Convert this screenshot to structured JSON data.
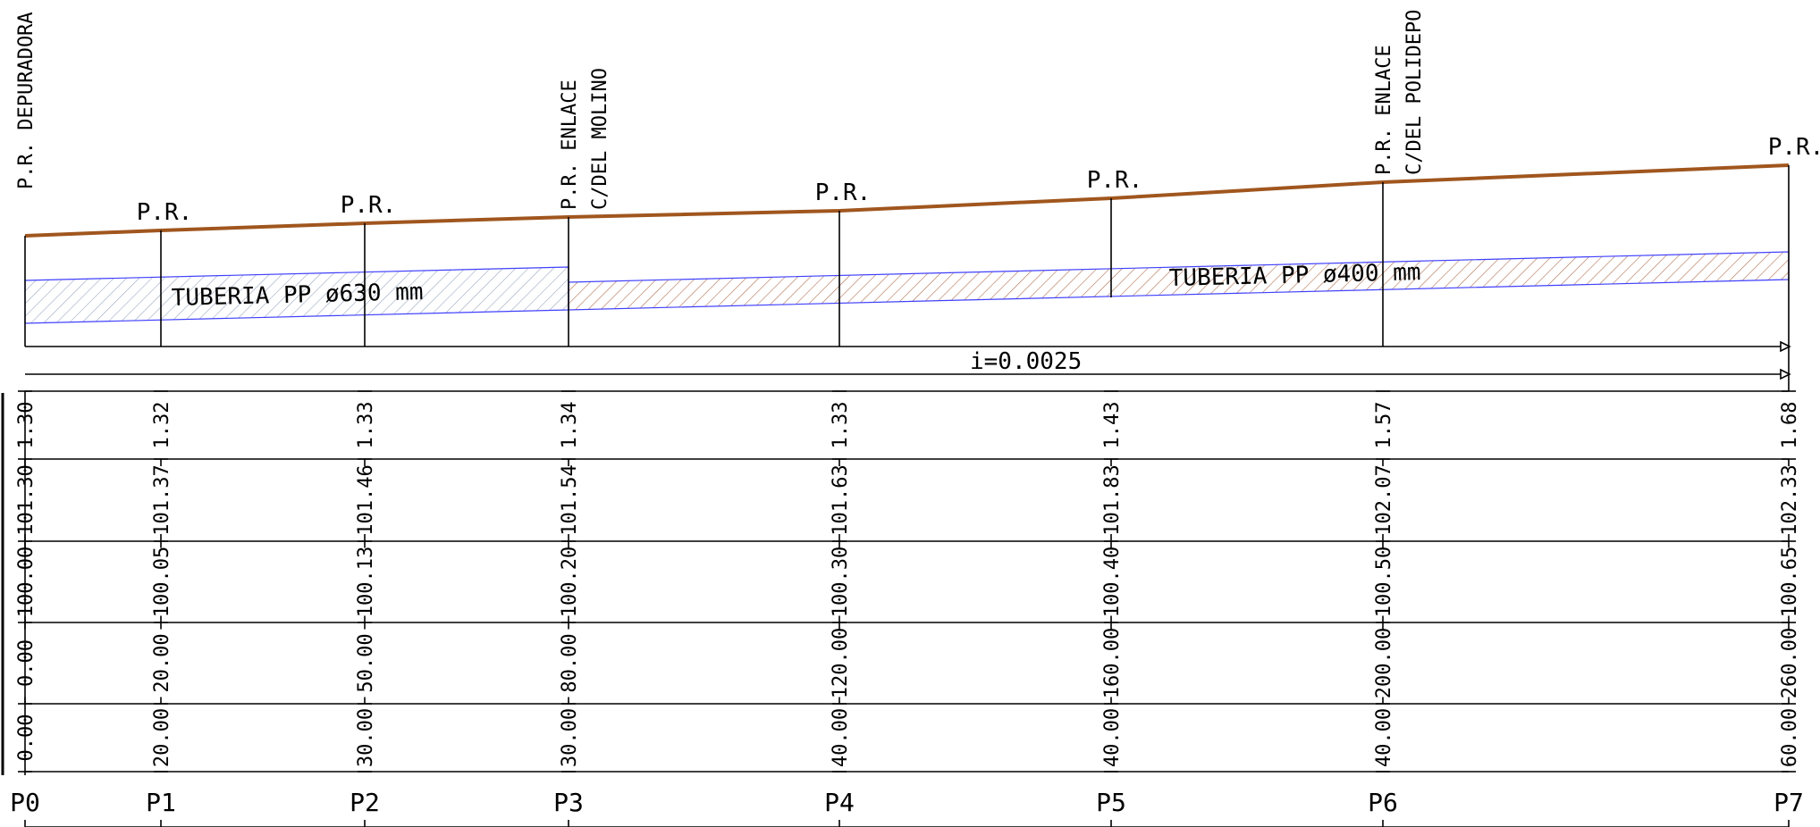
{
  "pipes": [
    {
      "label": "TUBERIA  PP  ø630  mm",
      "fill": "#9aa8bf"
    },
    {
      "label": "TUBERIA  PP  ø400  mm",
      "fill": "#b07050"
    }
  ],
  "slope_label": "i=0.0025",
  "colors": {
    "terrain": "#a0561e",
    "pipe_edge": "#4040ff"
  },
  "stations": [
    {
      "id": "P0",
      "top_label": [
        "P.R.  DEPURADORA"
      ],
      "depth": "1.30",
      "terrain": "101.30",
      "invert": "100.00",
      "origin": "0.00",
      "partial": "0.00"
    },
    {
      "id": "P1",
      "top_label": [
        "P.R."
      ],
      "depth": "1.32",
      "terrain": "101.37",
      "invert": "100.05",
      "origin": "20.00",
      "partial": "20.00"
    },
    {
      "id": "P2",
      "top_label": [
        "P.R."
      ],
      "depth": "1.33",
      "terrain": "101.46",
      "invert": "100.13",
      "origin": "50.00",
      "partial": "30.00"
    },
    {
      "id": "P3",
      "top_label": [
        "P.R.  ENLACE",
        "C/DEL  MOLINO"
      ],
      "depth": "1.34",
      "terrain": "101.54",
      "invert": "100.20",
      "origin": "80.00",
      "partial": "30.00"
    },
    {
      "id": "P4",
      "top_label": [
        "P.R."
      ],
      "depth": "1.33",
      "terrain": "101.63",
      "invert": "100.30",
      "origin": "120.00",
      "partial": "40.00"
    },
    {
      "id": "P5",
      "top_label": [
        "P.R."
      ],
      "depth": "1.43",
      "terrain": "101.83",
      "invert": "100.40",
      "origin": "160.00",
      "partial": "40.00"
    },
    {
      "id": "P6",
      "top_label": [
        "P.R.  ENLACE",
        "C/DEL  POLIDEPO"
      ],
      "depth": "1.57",
      "terrain": "102.07",
      "invert": "100.50",
      "origin": "200.00",
      "partial": "40.00"
    },
    {
      "id": "P7",
      "top_label": [
        "P.R."
      ],
      "depth": "1.68",
      "terrain": "102.33",
      "invert": "100.65",
      "origin": "260.00",
      "partial": "60.00"
    }
  ]
}
